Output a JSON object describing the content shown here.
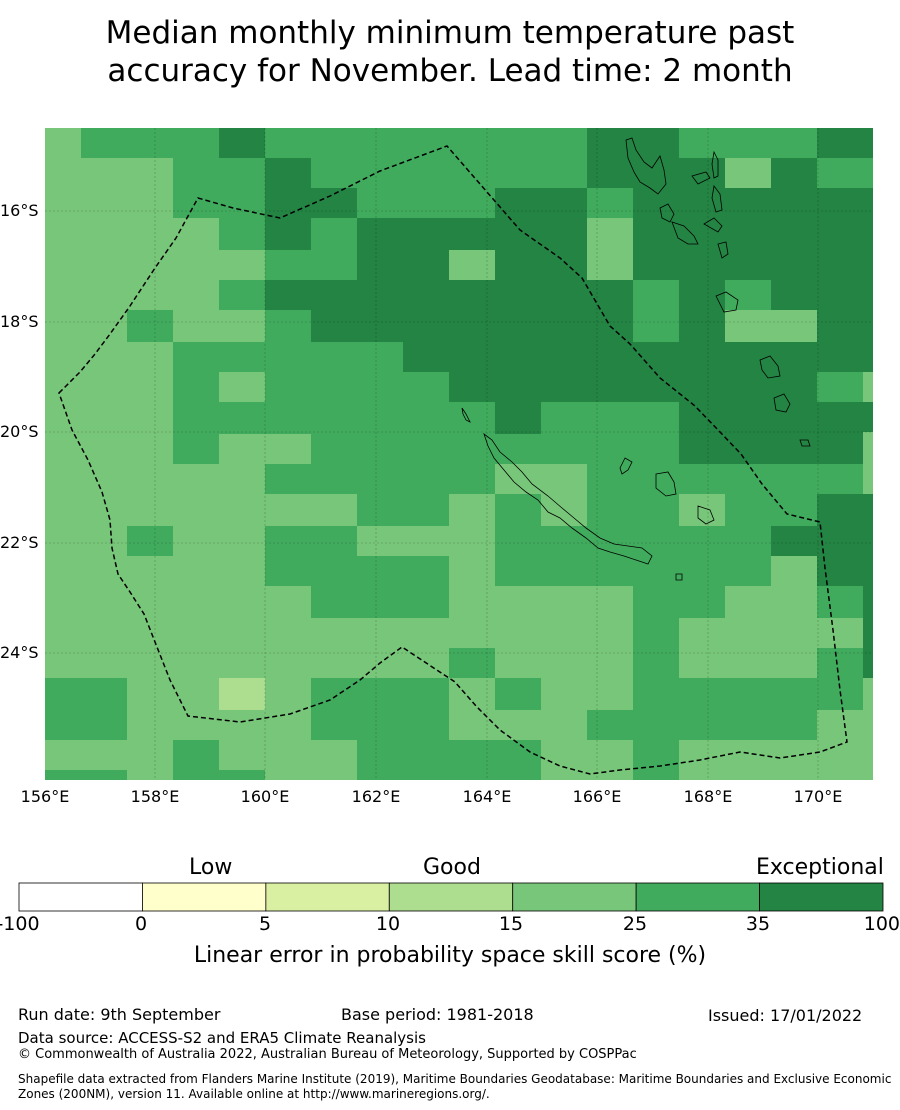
{
  "title_line1": "Median monthly minimum temperature past",
  "title_line2": "accuracy for November. Lead time: 2 month",
  "map": {
    "lat_ticks": [
      "16°S",
      "18°S",
      "20°S",
      "22°S",
      "24°S"
    ],
    "lon_ticks": [
      "156°E",
      "158°E",
      "160°E",
      "162°E",
      "164°E",
      "166°E",
      "168°E",
      "170°E"
    ],
    "lon_range": [
      155.8,
      171.0
    ],
    "lat_range": [
      -26.3,
      -14.5
    ],
    "region_outline": "dashed boundary line"
  },
  "colorbar": {
    "categories": [
      "Low",
      "Good",
      "Exceptional"
    ],
    "ticks": [
      "-100",
      "0",
      "5",
      "10",
      "15",
      "25",
      "35",
      "100"
    ],
    "colors": [
      "#ffffff",
      "#ffffcc",
      "#d9f0a3",
      "#addd8e",
      "#78c679",
      "#41ab5d",
      "#238443"
    ],
    "label": "Linear error in probability space skill score (%)"
  },
  "footer": {
    "run_date": "Run date: 9th September",
    "base_period": "Base period: 1981-2018",
    "issued": "Issued: 17/01/2022",
    "data_source": "Data source: ACCESS-S2 and ERA5 Climate Reanalysis",
    "copyright": "© Commonwealth of Australia 2022, Australian Bureau of Meteorology, Supported by COSPPac",
    "shapefile": "Shapefile data extracted from Flanders Marine Institute (2019), Maritime Boundaries Geodatabase: Maritime Boundaries and Exclusive Economic Zones (200NM), version 11. Available online at http://www.marineregions.org/."
  }
}
